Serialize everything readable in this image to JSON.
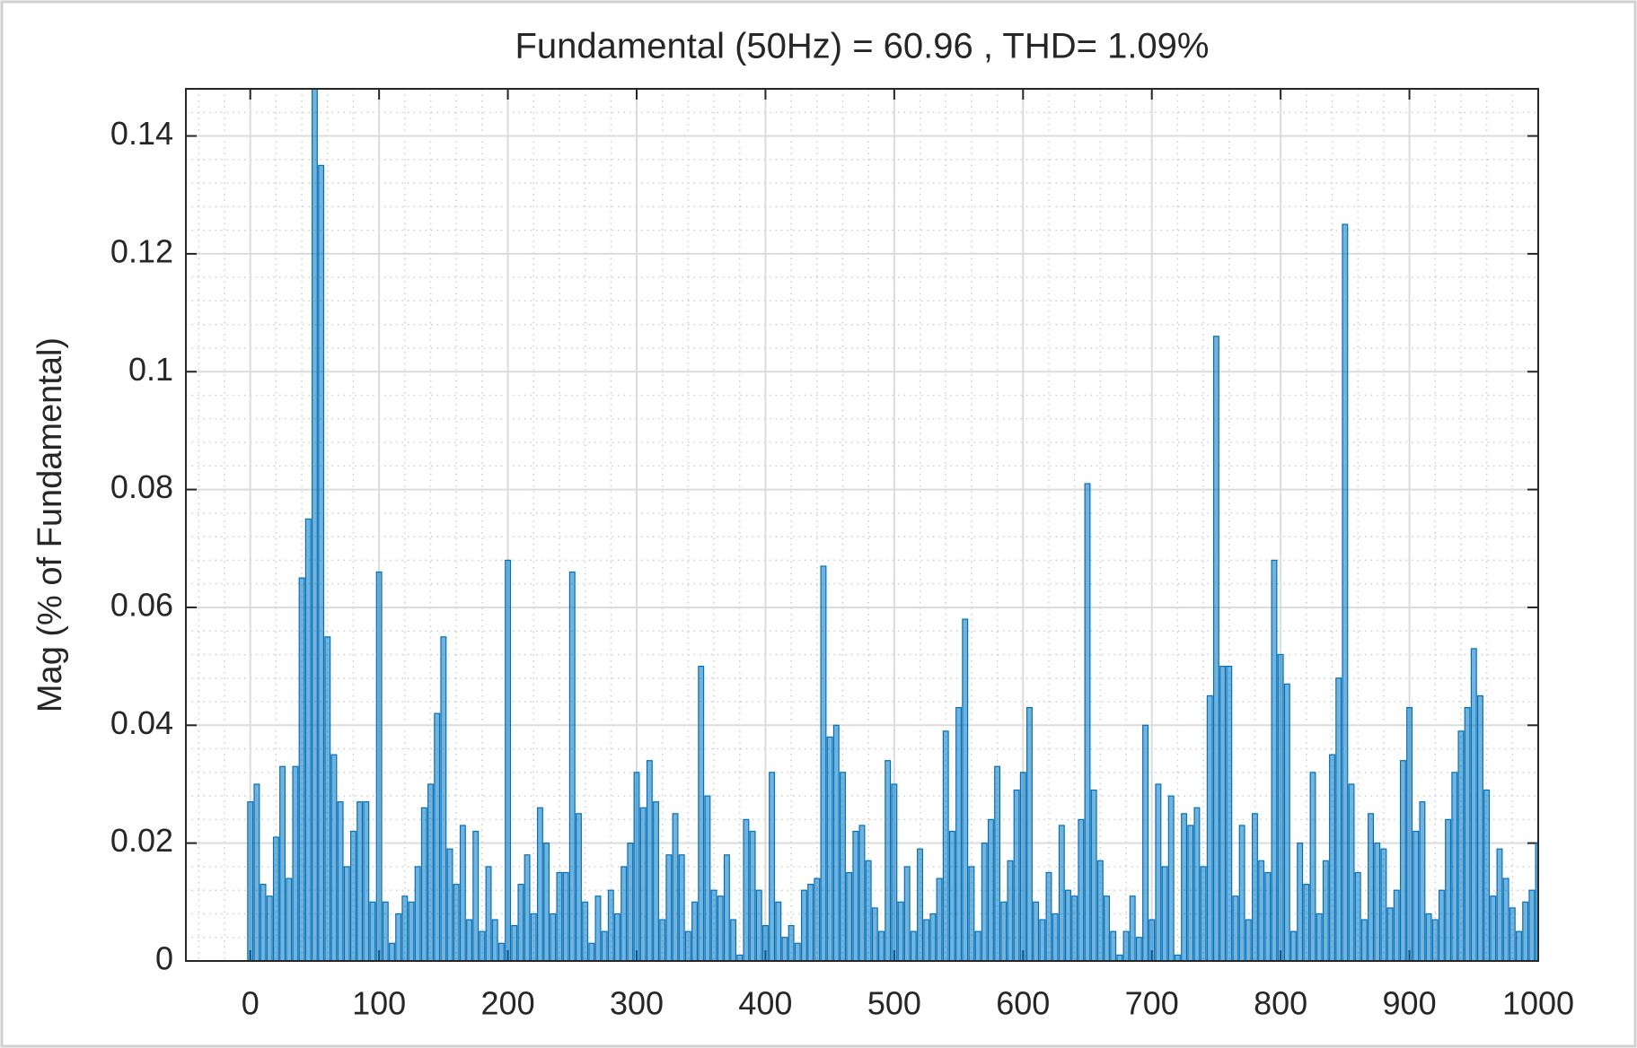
{
  "chart_data": {
    "type": "bar",
    "title": "Fundamental (50Hz) = 60.96 , THD= 1.09%",
    "y_label": "Mag (% of Fundamental)",
    "x": [
      0,
      5,
      10,
      15,
      20,
      25,
      30,
      35,
      40,
      45,
      50,
      55,
      60,
      65,
      70,
      75,
      80,
      85,
      90,
      95,
      100,
      105,
      110,
      115,
      120,
      125,
      130,
      135,
      140,
      145,
      150,
      155,
      160,
      165,
      170,
      175,
      180,
      185,
      190,
      195,
      200,
      205,
      210,
      215,
      220,
      225,
      230,
      235,
      240,
      245,
      250,
      255,
      260,
      265,
      270,
      275,
      280,
      285,
      290,
      295,
      300,
      305,
      310,
      315,
      320,
      325,
      330,
      335,
      340,
      345,
      350,
      355,
      360,
      365,
      370,
      375,
      380,
      385,
      390,
      395,
      400,
      405,
      410,
      415,
      420,
      425,
      430,
      435,
      440,
      445,
      450,
      455,
      460,
      465,
      470,
      475,
      480,
      485,
      490,
      495,
      500,
      505,
      510,
      515,
      520,
      525,
      530,
      535,
      540,
      545,
      550,
      555,
      560,
      565,
      570,
      575,
      580,
      585,
      590,
      595,
      600,
      605,
      610,
      615,
      620,
      625,
      630,
      635,
      640,
      645,
      650,
      655,
      660,
      665,
      670,
      675,
      680,
      685,
      690,
      695,
      700,
      705,
      710,
      715,
      720,
      725,
      730,
      735,
      740,
      745,
      750,
      755,
      760,
      765,
      770,
      775,
      780,
      785,
      790,
      795,
      800,
      805,
      810,
      815,
      820,
      825,
      830,
      835,
      840,
      845,
      850,
      855,
      860,
      865,
      870,
      875,
      880,
      885,
      890,
      895,
      900,
      905,
      910,
      915,
      920,
      925,
      930,
      935,
      940,
      945,
      950,
      955,
      960,
      965,
      970,
      975,
      980,
      985,
      990,
      995,
      1000
    ],
    "values": [
      0.027,
      0.03,
      0.013,
      0.011,
      0.021,
      0.033,
      0.014,
      0.033,
      0.065,
      0.075,
      0.148,
      0.135,
      0.055,
      0.035,
      0.027,
      0.016,
      0.022,
      0.027,
      0.027,
      0.01,
      0.066,
      0.01,
      0.003,
      0.008,
      0.011,
      0.01,
      0.016,
      0.026,
      0.03,
      0.042,
      0.055,
      0.019,
      0.013,
      0.023,
      0.007,
      0.022,
      0.005,
      0.016,
      0.007,
      0.003,
      0.068,
      0.006,
      0.013,
      0.018,
      0.008,
      0.026,
      0.02,
      0.008,
      0.015,
      0.015,
      0.066,
      0.025,
      0.01,
      0.003,
      0.011,
      0.005,
      0.012,
      0.008,
      0.016,
      0.02,
      0.032,
      0.026,
      0.034,
      0.027,
      0.007,
      0.018,
      0.025,
      0.018,
      0.005,
      0.01,
      0.05,
      0.028,
      0.012,
      0.011,
      0.018,
      0.007,
      0.001,
      0.024,
      0.022,
      0.012,
      0.006,
      0.032,
      0.01,
      0.004,
      0.006,
      0.003,
      0.012,
      0.013,
      0.014,
      0.067,
      0.038,
      0.04,
      0.032,
      0.015,
      0.022,
      0.023,
      0.017,
      0.009,
      0.005,
      0.034,
      0.03,
      0.01,
      0.016,
      0.005,
      0.019,
      0.007,
      0.008,
      0.014,
      0.039,
      0.022,
      0.043,
      0.058,
      0.016,
      0.005,
      0.02,
      0.024,
      0.033,
      0.01,
      0.017,
      0.029,
      0.032,
      0.043,
      0.01,
      0.007,
      0.015,
      0.008,
      0.023,
      0.012,
      0.011,
      0.024,
      0.081,
      0.029,
      0.017,
      0.011,
      0.005,
      0.001,
      0.005,
      0.011,
      0.004,
      0.04,
      0.007,
      0.03,
      0.016,
      0.028,
      0.001,
      0.025,
      0.023,
      0.026,
      0.016,
      0.045,
      0.106,
      0.05,
      0.05,
      0.011,
      0.023,
      0.007,
      0.025,
      0.017,
      0.015,
      0.068,
      0.052,
      0.047,
      0.005,
      0.02,
      0.013,
      0.032,
      0.008,
      0.017,
      0.035,
      0.048,
      0.125,
      0.03,
      0.015,
      0.007,
      0.025,
      0.02,
      0.019,
      0.009,
      0.012,
      0.034,
      0.043,
      0.022,
      0.027,
      0.008,
      0.007,
      0.012,
      0.024,
      0.032,
      0.039,
      0.043,
      0.053,
      0.045,
      0.029,
      0.011,
      0.019,
      0.014,
      0.009,
      0.005,
      0.01,
      0.012,
      0.02
    ],
    "bar_width": 5,
    "color": "#0072bd",
    "xlim": [
      -50,
      1000
    ],
    "xticks": [
      0,
      100,
      200,
      300,
      400,
      500,
      600,
      700,
      800,
      900,
      1000
    ],
    "ylim": [
      0,
      0.148
    ],
    "yticks": [
      0,
      0.02,
      0.04,
      0.06,
      0.08,
      0.1,
      0.12,
      0.14
    ],
    "grid": true,
    "minor_grid": true
  }
}
